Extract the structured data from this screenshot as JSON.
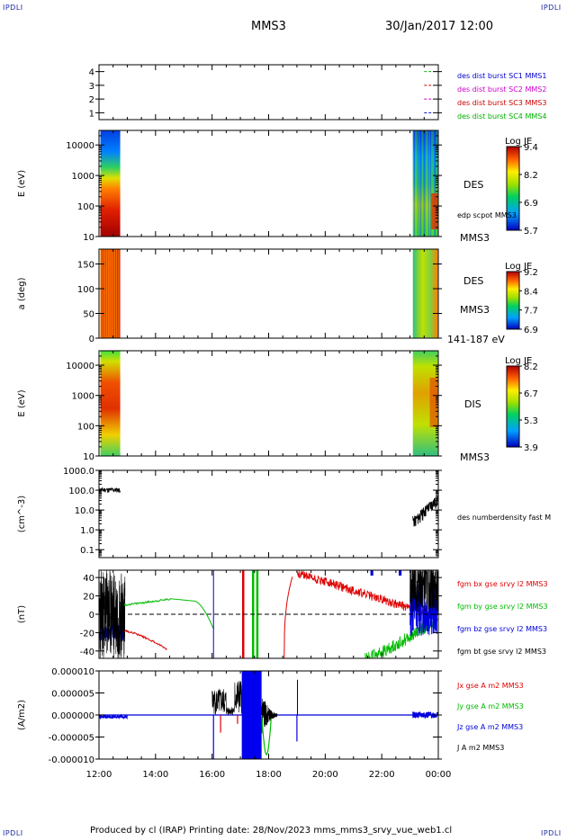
{
  "header": {
    "corner_tl": "IPDLI",
    "corner_tr": "IPDLI",
    "corner_bl": "IPDLI",
    "corner_br": "IPDLI",
    "spacecraft": "MMS3",
    "date_time": "30/Jan/2017 12:00"
  },
  "footer": {
    "text": "Produced by cl (IRAP)   Printing date: 28/Nov/2023   mms_mms3_srvy_vue_web1.cl"
  },
  "colors": {
    "frame": "#000000",
    "label_blue": "#0000cc",
    "label_red": "#cc0000",
    "label_green": "#00b000",
    "label_magenta": "#cc00cc"
  },
  "chart_data": [
    {
      "id": "panel-coverage",
      "type": "line",
      "ylim": [
        0.5,
        4.5
      ],
      "yticks": [
        "1",
        "2",
        "3",
        "4"
      ],
      "legend": [
        {
          "label": "des dist burst SC1 MMS1",
          "color": "#0000cc"
        },
        {
          "label": "des dist burst SC2 MMS2",
          "color": "#cc00cc"
        },
        {
          "label": "des dist burst SC3 MMS3",
          "color": "#cc0000"
        },
        {
          "label": "des dist burst SC4 MMS4",
          "color": "#00b000"
        }
      ]
    },
    {
      "id": "panel-des-energy",
      "type": "heatmap",
      "ylabel": "E (eV)",
      "yscale": "log",
      "yticks": [
        "10",
        "100",
        "1000",
        "10000"
      ],
      "labels": [
        "DES",
        "edp scpot MMS3",
        "MMS3"
      ],
      "colorbar": {
        "title": "Log JE",
        "ticks": [
          "9.4",
          "8.2",
          "6.9",
          "5.7"
        ]
      }
    },
    {
      "id": "panel-des-pitch",
      "type": "heatmap",
      "ylabel": "a (deg)",
      "yticks": [
        "0",
        "50",
        "100",
        "150"
      ],
      "labels": [
        "DES",
        "MMS3",
        "141-187 eV"
      ],
      "colorbar": {
        "title": "Log JE",
        "ticks": [
          "9.2",
          "8.4",
          "7.7",
          "6.9"
        ]
      }
    },
    {
      "id": "panel-dis-energy",
      "type": "heatmap",
      "ylabel": "E (eV)",
      "yscale": "log",
      "yticks": [
        "10",
        "100",
        "1000",
        "10000"
      ],
      "labels": [
        "DIS",
        "MMS3"
      ],
      "colorbar": {
        "title": "Log JE",
        "ticks": [
          "8.2",
          "6.7",
          "5.3",
          "3.9"
        ]
      }
    },
    {
      "id": "panel-density",
      "type": "line",
      "ylabel": "(cm^-3)",
      "yscale": "log",
      "yticks": [
        "0.1",
        "1.0",
        "10.0",
        "100.0",
        "1000.0"
      ],
      "series": [
        {
          "name": "des numberdensity fast M",
          "color": "#000000"
        }
      ]
    },
    {
      "id": "panel-fgm",
      "type": "line",
      "ylabel": "(nT)",
      "ylim": [
        -48,
        48
      ],
      "yticks": [
        "-40",
        "-20",
        "0",
        "20",
        "40"
      ],
      "series": [
        {
          "name": "fgm bx gse srvy l2 MMS3",
          "color": "#dd0000"
        },
        {
          "name": "fgm by gse srvy l2 MMS3",
          "color": "#00bb00"
        },
        {
          "name": "fgm bz gse srvy l2 MMS3",
          "color": "#0000dd"
        },
        {
          "name": "fgm bt gse srvy l2 MMS3",
          "color": "#000000"
        }
      ]
    },
    {
      "id": "panel-current",
      "type": "line",
      "ylabel": "(A/m2)",
      "ylim": [
        -1e-05,
        1e-05
      ],
      "yticks": [
        "-0.000010",
        "-0.000005",
        "0.000000",
        "0.000005",
        "0.000010"
      ],
      "series": [
        {
          "name": "Jx gse A m2 MMS3",
          "color": "#dd0000"
        },
        {
          "name": "Jy gse A m2 MMS3",
          "color": "#00bb00"
        },
        {
          "name": "Jz gse A m2 MMS3",
          "color": "#0000dd"
        },
        {
          "name": "J A m2 MMS3",
          "color": "#000000"
        }
      ]
    }
  ],
  "xaxis": {
    "ticks": [
      "12:00",
      "14:00",
      "16:00",
      "18:00",
      "20:00",
      "22:00",
      "00:00"
    ],
    "tick_hours": [
      12,
      14,
      16,
      18,
      20,
      22,
      24
    ],
    "range_hours": [
      12,
      24
    ]
  }
}
